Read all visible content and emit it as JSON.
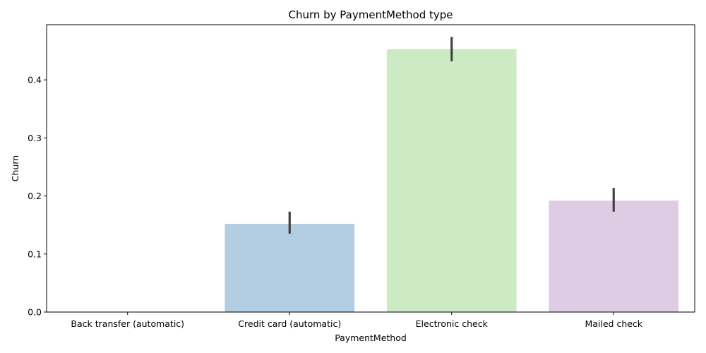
{
  "chart_data": {
    "type": "bar",
    "title": "Churn by PaymentMethod type",
    "xlabel": "PaymentMethod",
    "ylabel": "Churn",
    "categories": [
      "Back transfer (automatic)",
      "Credit card (automatic)",
      "Electronic check",
      "Mailed check"
    ],
    "values": [
      0.0,
      0.152,
      0.453,
      0.192
    ],
    "error_bars": [
      [
        0.0,
        0.0
      ],
      [
        0.135,
        0.173
      ],
      [
        0.432,
        0.474
      ],
      [
        0.173,
        0.214
      ]
    ],
    "colors": [
      "#b3cde3",
      "#b3cde3",
      "#ccebc5",
      "#decbe4"
    ],
    "ylim": [
      0,
      0.495
    ],
    "yticks": [
      "0.0",
      "0.1",
      "0.2",
      "0.3",
      "0.4"
    ],
    "ytick_values": [
      0.0,
      0.1,
      0.2,
      0.3,
      0.4
    ],
    "grid": false,
    "legend": "none"
  }
}
